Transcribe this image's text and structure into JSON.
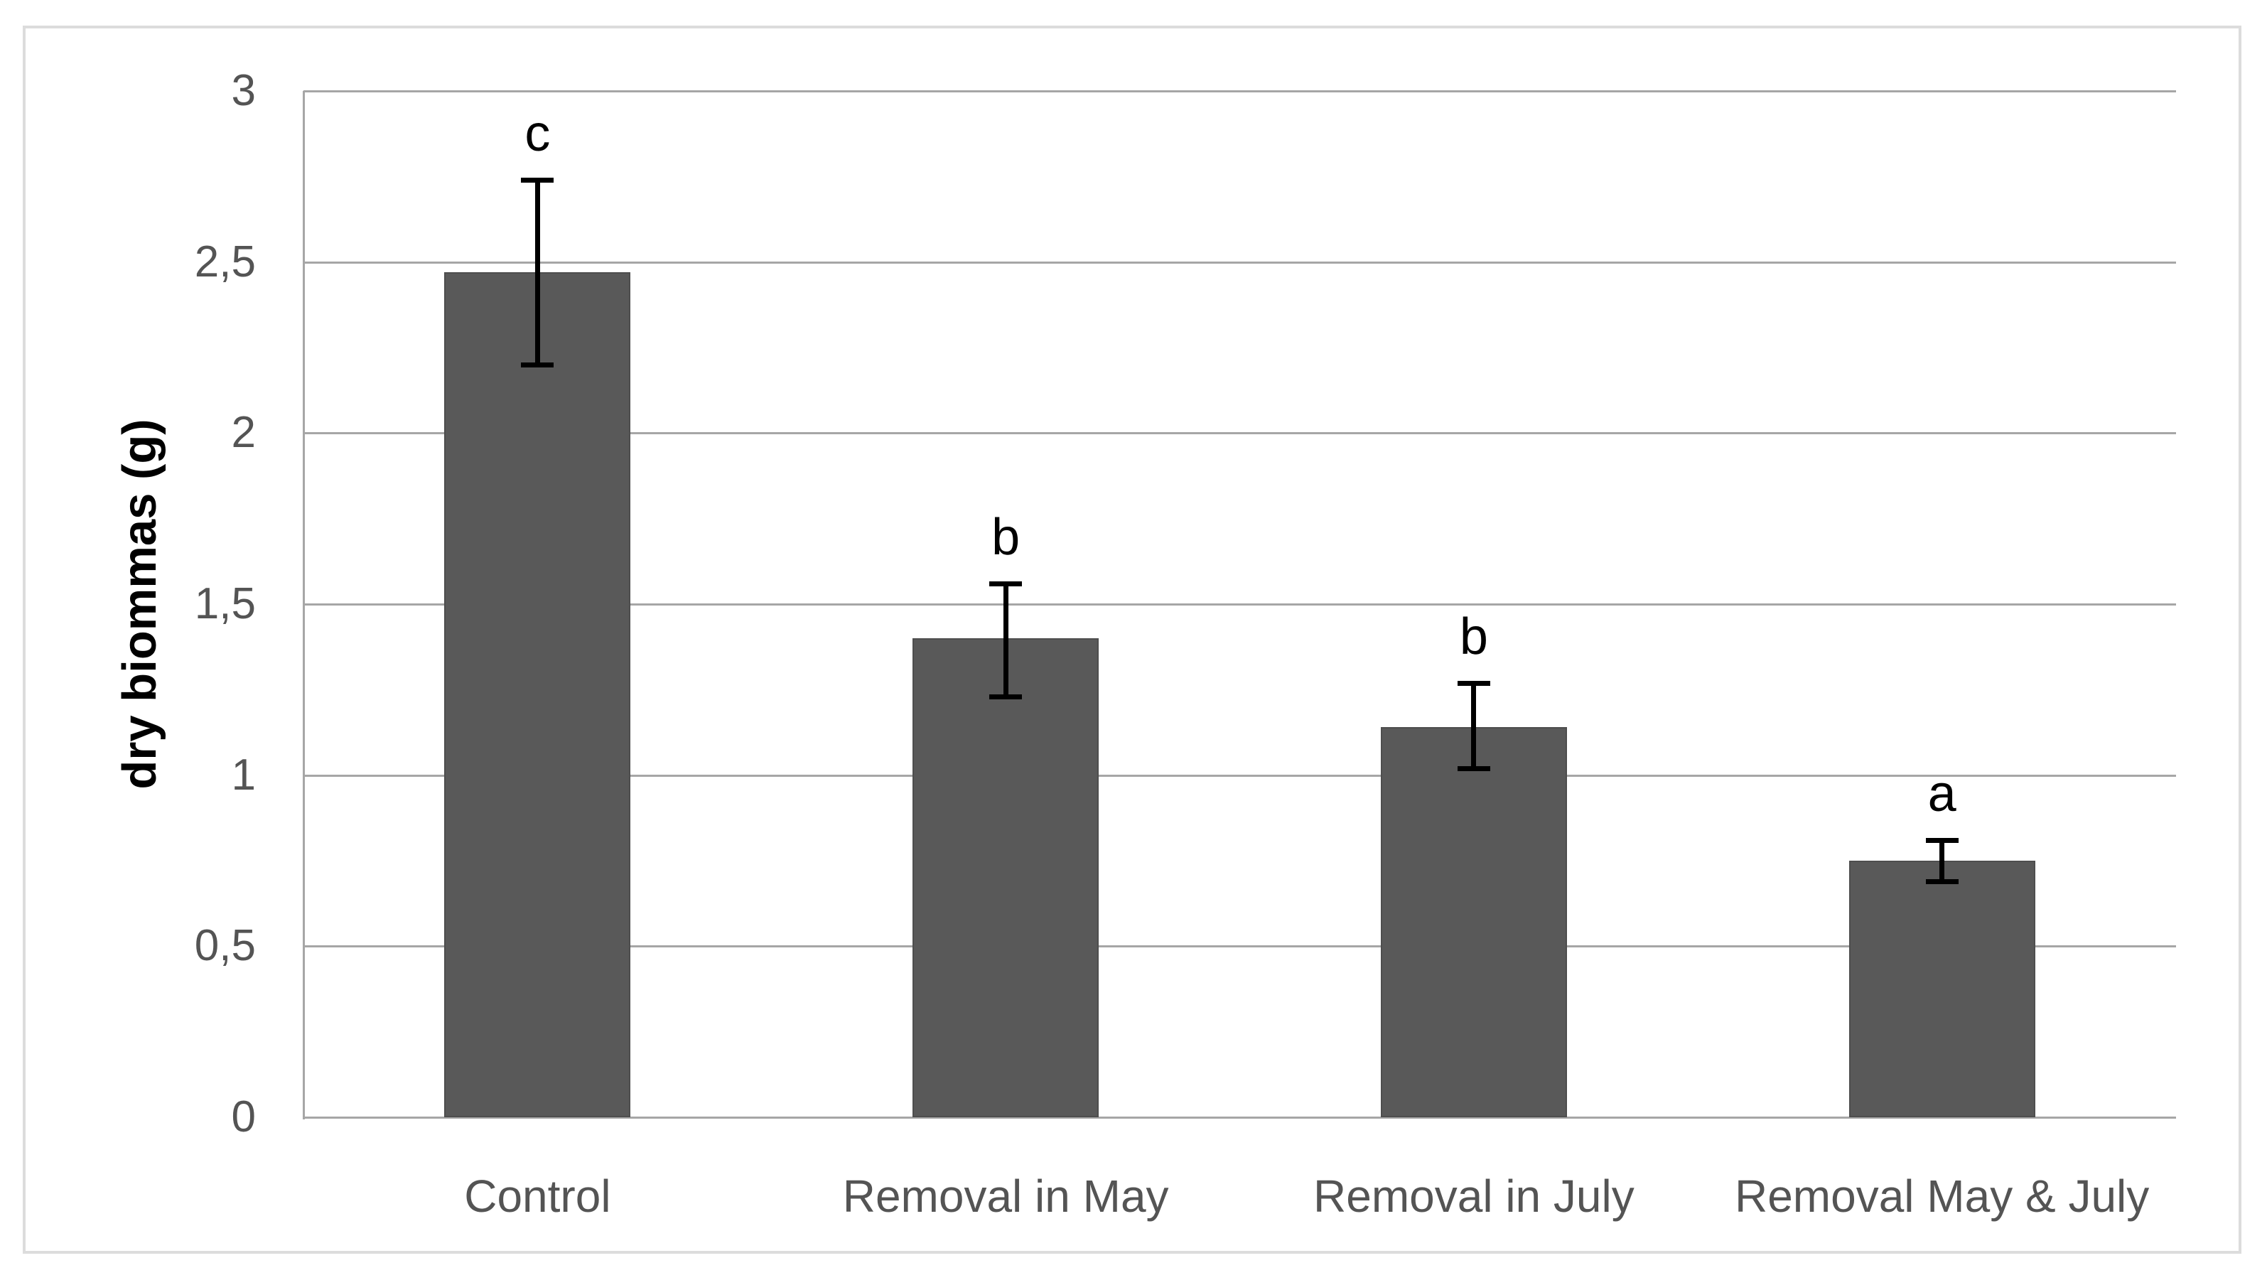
{
  "figure": {
    "background": "#ffffff",
    "border_color": "#dcdcdc"
  },
  "chart_data": {
    "type": "bar",
    "title": "",
    "ylabel": "dry biommas (g)",
    "xlabel": "",
    "categories": [
      "Control",
      "Removal in May",
      "Removal in July",
      "Removal May & July"
    ],
    "values": [
      2.47,
      1.4,
      1.14,
      0.75
    ],
    "error_upper": [
      2.74,
      1.56,
      1.27,
      0.81
    ],
    "error_lower": [
      2.2,
      1.23,
      1.02,
      0.69
    ],
    "significance_letters": [
      "c",
      "b",
      "b",
      "a"
    ],
    "ylim": [
      0,
      3
    ],
    "ytick_step": 0.5,
    "ytick_labels": [
      "0",
      "0,5",
      "1",
      "1,5",
      "2",
      "2,5",
      "3"
    ],
    "grid": true,
    "legend": "none",
    "colors": {
      "bar_fill": "#595959",
      "bar_edge": "#4e4e4e",
      "gridline": "#a6a6a6",
      "axis_line": "#a6a6a6",
      "error_bar": "#000000",
      "tick_label": "#545454",
      "category_label": "#545454",
      "letter": "#000000",
      "y_title": "#000000"
    }
  }
}
